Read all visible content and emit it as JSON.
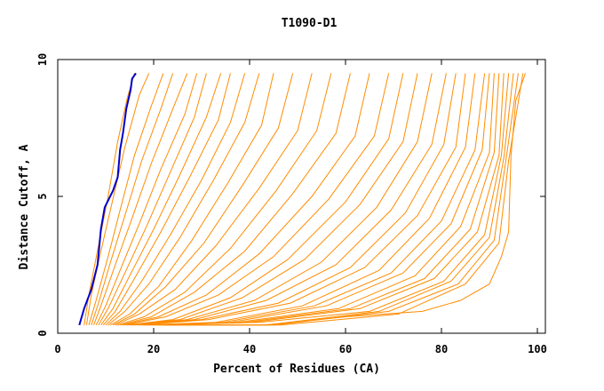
{
  "chart_data": {
    "type": "line",
    "title": "T1090-D1",
    "xlabel": "Percent of Residues (CA)",
    "ylabel": "Distance Cutoff, A",
    "xlim": [
      0,
      100
    ],
    "ylim": [
      0,
      10
    ],
    "x_ticks": [
      "0",
      "20",
      "40",
      "60",
      "80",
      "100"
    ],
    "y_ticks": [
      "0",
      "5",
      "10"
    ],
    "grid": false,
    "legend": "none",
    "highlight_color": "#0000cc",
    "other_color": "#ff8c00",
    "highlight_series": {
      "points": [
        [
          4.5,
          0.3
        ],
        [
          5.5,
          0.9
        ],
        [
          7,
          1.6
        ],
        [
          8.3,
          2.5
        ],
        [
          9,
          3.8
        ],
        [
          9.8,
          4.6
        ],
        [
          11.5,
          5.2
        ],
        [
          12.5,
          5.7
        ],
        [
          13,
          6.7
        ],
        [
          13.6,
          7.3
        ],
        [
          14.3,
          8.2
        ],
        [
          15.2,
          8.9
        ],
        [
          15.5,
          9.3
        ],
        [
          16.3,
          9.5
        ]
      ]
    },
    "series": [
      {
        "points": [
          [
            5.5,
            0.3
          ],
          [
            6.6,
            1.5
          ],
          [
            8.5,
            3.2
          ],
          [
            10.5,
            5
          ],
          [
            12.5,
            7
          ],
          [
            14.5,
            8.6
          ],
          [
            16,
            9.5
          ]
        ]
      },
      {
        "points": [
          [
            6,
            0.3
          ],
          [
            7,
            1.4
          ],
          [
            9,
            3
          ],
          [
            11.5,
            4.9
          ],
          [
            14,
            6.8
          ],
          [
            17,
            8.7
          ],
          [
            19,
            9.5
          ]
        ]
      },
      {
        "points": [
          [
            6.5,
            0.3
          ],
          [
            8,
            1.2
          ],
          [
            10.5,
            2.8
          ],
          [
            13,
            4.5
          ],
          [
            16,
            6.5
          ],
          [
            19.5,
            8.3
          ],
          [
            22,
            9.5
          ]
        ]
      },
      {
        "points": [
          [
            7,
            0.3
          ],
          [
            8.5,
            1.1
          ],
          [
            11,
            2.6
          ],
          [
            14,
            4.3
          ],
          [
            17.5,
            6.3
          ],
          [
            21.5,
            8.2
          ],
          [
            24,
            9.5
          ]
        ]
      },
      {
        "points": [
          [
            7.5,
            0.3
          ],
          [
            9,
            1
          ],
          [
            12,
            2.5
          ],
          [
            15.5,
            4.2
          ],
          [
            19.5,
            6.2
          ],
          [
            24,
            8.2
          ],
          [
            27,
            9.5
          ]
        ]
      },
      {
        "points": [
          [
            8,
            0.3
          ],
          [
            10,
            1
          ],
          [
            13,
            2.3
          ],
          [
            17,
            4
          ],
          [
            21.5,
            6
          ],
          [
            26.5,
            8
          ],
          [
            29,
            9.5
          ]
        ]
      },
      {
        "points": [
          [
            8.5,
            0.3
          ],
          [
            10.5,
            0.9
          ],
          [
            14,
            2.2
          ],
          [
            18.5,
            3.9
          ],
          [
            23.5,
            5.9
          ],
          [
            28.5,
            7.9
          ],
          [
            31,
            9.5
          ]
        ]
      },
      {
        "points": [
          [
            9,
            0.3
          ],
          [
            11.5,
            0.9
          ],
          [
            15,
            2.1
          ],
          [
            20,
            3.8
          ],
          [
            25.5,
            5.8
          ],
          [
            31,
            7.9
          ],
          [
            34,
            9.5
          ]
        ]
      },
      {
        "points": [
          [
            9.5,
            0.3
          ],
          [
            12,
            0.8
          ],
          [
            16,
            2
          ],
          [
            21.5,
            3.7
          ],
          [
            27.5,
            5.7
          ],
          [
            33.5,
            7.8
          ],
          [
            36,
            9.5
          ]
        ]
      },
      {
        "points": [
          [
            10,
            0.3
          ],
          [
            13,
            0.8
          ],
          [
            17.5,
            1.9
          ],
          [
            23.5,
            3.6
          ],
          [
            30,
            5.6
          ],
          [
            36,
            7.7
          ],
          [
            39,
            9.5
          ]
        ]
      },
      {
        "points": [
          [
            10.5,
            0.3
          ],
          [
            14,
            0.8
          ],
          [
            19,
            1.8
          ],
          [
            25.5,
            3.5
          ],
          [
            32.5,
            5.6
          ],
          [
            39,
            7.7
          ],
          [
            42,
            9.5
          ]
        ]
      },
      {
        "points": [
          [
            11,
            0.3
          ],
          [
            15,
            0.7
          ],
          [
            21,
            1.7
          ],
          [
            28,
            3.4
          ],
          [
            35.5,
            5.5
          ],
          [
            42.5,
            7.6
          ],
          [
            45,
            9.5
          ]
        ]
      },
      {
        "points": [
          [
            11.5,
            0.3
          ],
          [
            16,
            0.7
          ],
          [
            22.5,
            1.7
          ],
          [
            30.5,
            3.3
          ],
          [
            38.5,
            5.4
          ],
          [
            46,
            7.5
          ],
          [
            49,
            9.5
          ]
        ]
      },
      {
        "points": [
          [
            12,
            0.3
          ],
          [
            17,
            0.7
          ],
          [
            24.5,
            1.6
          ],
          [
            33,
            3.2
          ],
          [
            42,
            5.3
          ],
          [
            50,
            7.4
          ],
          [
            53,
            9.5
          ]
        ]
      },
      {
        "points": [
          [
            12.5,
            0.3
          ],
          [
            18,
            0.6
          ],
          [
            26.5,
            1.5
          ],
          [
            36,
            3.1
          ],
          [
            45.5,
            5.2
          ],
          [
            54,
            7.4
          ],
          [
            57,
            9.5
          ]
        ]
      },
      {
        "points": [
          [
            13,
            0.3
          ],
          [
            19.5,
            0.6
          ],
          [
            28.5,
            1.5
          ],
          [
            39,
            3
          ],
          [
            49,
            5.1
          ],
          [
            58,
            7.3
          ],
          [
            61,
            9.5
          ]
        ]
      },
      {
        "points": [
          [
            13.5,
            0.3
          ],
          [
            21,
            0.6
          ],
          [
            31,
            1.4
          ],
          [
            42,
            2.9
          ],
          [
            53,
            5
          ],
          [
            62,
            7.2
          ],
          [
            65,
            9.5
          ]
        ]
      },
      {
        "points": [
          [
            14,
            0.3
          ],
          [
            22.5,
            0.6
          ],
          [
            33.5,
            1.4
          ],
          [
            45,
            2.8
          ],
          [
            56.5,
            4.9
          ],
          [
            66,
            7.2
          ],
          [
            69,
            9.5
          ]
        ]
      },
      {
        "points": [
          [
            14.5,
            0.3
          ],
          [
            24,
            0.5
          ],
          [
            36,
            1.3
          ],
          [
            48,
            2.7
          ],
          [
            60,
            4.8
          ],
          [
            69,
            7.1
          ],
          [
            72,
            9.5
          ]
        ]
      },
      {
        "points": [
          [
            15,
            0.3
          ],
          [
            25.5,
            0.5
          ],
          [
            38.5,
            1.3
          ],
          [
            51.5,
            2.7
          ],
          [
            63,
            4.7
          ],
          [
            72,
            7
          ],
          [
            75,
            9.5
          ]
        ]
      },
      {
        "points": [
          [
            15.5,
            0.3
          ],
          [
            27,
            0.5
          ],
          [
            41,
            1.2
          ],
          [
            55,
            2.6
          ],
          [
            66.5,
            4.6
          ],
          [
            75,
            7
          ],
          [
            78,
            9.5
          ]
        ]
      },
      {
        "points": [
          [
            16,
            0.3
          ],
          [
            28.5,
            0.5
          ],
          [
            43.5,
            1.2
          ],
          [
            58,
            2.5
          ],
          [
            69.5,
            4.5
          ],
          [
            78,
            6.9
          ],
          [
            81,
            9.5
          ]
        ]
      },
      {
        "points": [
          [
            16.5,
            0.3
          ],
          [
            30,
            0.5
          ],
          [
            46,
            1.1
          ],
          [
            61,
            2.4
          ],
          [
            72.5,
            4.4
          ],
          [
            80.5,
            6.9
          ],
          [
            83,
            9.5
          ]
        ]
      },
      {
        "points": [
          [
            17,
            0.3
          ],
          [
            31.5,
            0.5
          ],
          [
            48.5,
            1.1
          ],
          [
            64,
            2.4
          ],
          [
            75,
            4.3
          ],
          [
            83,
            6.8
          ],
          [
            85,
            9.5
          ]
        ]
      },
      {
        "points": [
          [
            17.5,
            0.3
          ],
          [
            33,
            0.4
          ],
          [
            51,
            1
          ],
          [
            67,
            2.3
          ],
          [
            77.5,
            4.2
          ],
          [
            85,
            6.8
          ],
          [
            87,
            9.5
          ]
        ]
      },
      {
        "points": [
          [
            18,
            0.3
          ],
          [
            34.5,
            0.4
          ],
          [
            53.5,
            1
          ],
          [
            69.5,
            2.2
          ],
          [
            80,
            4.1
          ],
          [
            87,
            6.7
          ],
          [
            89,
            9.5
          ]
        ]
      },
      {
        "points": [
          [
            18.5,
            0.3
          ],
          [
            36,
            0.4
          ],
          [
            56,
            1
          ],
          [
            72,
            2.2
          ],
          [
            82,
            4
          ],
          [
            88.5,
            6.7
          ],
          [
            90,
            9.5
          ]
        ]
      },
      {
        "points": [
          [
            19,
            0.3
          ],
          [
            37.5,
            0.4
          ],
          [
            58.5,
            0.9
          ],
          [
            74.5,
            2.1
          ],
          [
            84,
            3.9
          ],
          [
            90,
            6.6
          ],
          [
            91,
            9.5
          ]
        ]
      },
      {
        "points": [
          [
            19.5,
            0.3
          ],
          [
            39,
            0.4
          ],
          [
            61,
            0.9
          ],
          [
            76.5,
            2
          ],
          [
            86,
            3.8
          ],
          [
            91,
            6.6
          ],
          [
            92,
            9.5
          ]
        ]
      },
      {
        "points": [
          [
            20,
            0.3
          ],
          [
            40.5,
            0.4
          ],
          [
            63,
            0.9
          ],
          [
            78.5,
            2
          ],
          [
            87.5,
            3.7
          ],
          [
            92,
            6.5
          ],
          [
            93,
            9.5
          ]
        ]
      },
      {
        "points": [
          [
            20.5,
            0.3
          ],
          [
            42,
            0.4
          ],
          [
            65,
            0.8
          ],
          [
            80.5,
            1.9
          ],
          [
            89,
            3.6
          ],
          [
            92.5,
            6.5
          ],
          [
            94,
            9.5
          ]
        ]
      },
      {
        "points": [
          [
            21,
            0.3
          ],
          [
            43.5,
            0.3
          ],
          [
            67,
            0.8
          ],
          [
            82,
            1.9
          ],
          [
            90,
            3.5
          ],
          [
            93,
            6.4
          ],
          [
            95,
            9.5
          ]
        ]
      },
      {
        "points": [
          [
            21.5,
            0.3
          ],
          [
            45,
            0.3
          ],
          [
            69,
            0.8
          ],
          [
            83.5,
            1.8
          ],
          [
            91,
            3.4
          ],
          [
            93.5,
            6.4
          ],
          [
            96,
            9.5
          ]
        ]
      },
      {
        "points": [
          [
            22,
            0.3
          ],
          [
            46.5,
            0.3
          ],
          [
            71,
            0.7
          ],
          [
            85,
            1.8
          ],
          [
            92,
            3.3
          ],
          [
            94,
            6.3
          ],
          [
            97,
            9.5
          ]
        ]
      },
      {
        "points": [
          [
            43,
            0.3
          ],
          [
            60,
            0.6
          ],
          [
            76,
            0.8
          ],
          [
            84,
            1.2
          ],
          [
            90,
            1.8
          ],
          [
            92.5,
            2.8
          ],
          [
            94,
            3.7
          ],
          [
            94.5,
            6.5
          ],
          [
            95.5,
            8.5
          ],
          [
            97.5,
            9.5
          ]
        ]
      }
    ]
  }
}
